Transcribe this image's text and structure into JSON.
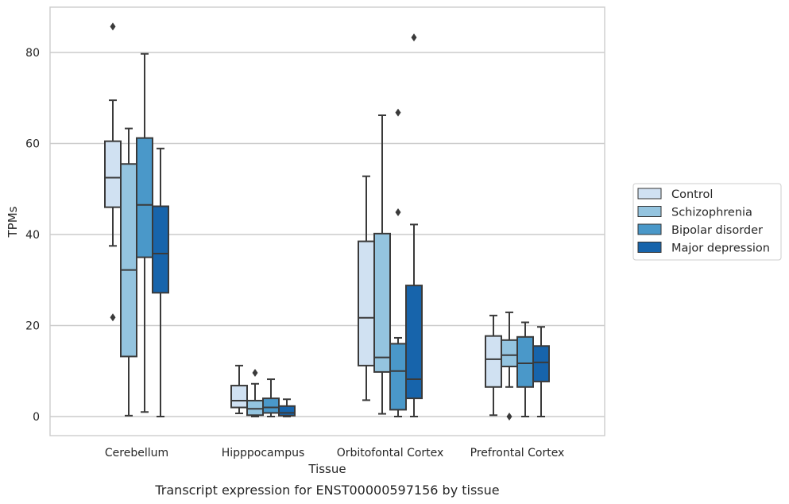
{
  "chart_data": {
    "type": "box",
    "title": "",
    "caption": "Transcript expression for ENST00000597156 by tissue",
    "xlabel": "Tissue",
    "ylabel": "TPMs",
    "ylim": [
      -4,
      90
    ],
    "yticks": [
      0,
      20,
      40,
      60,
      80
    ],
    "grid": "horizontal",
    "legend_position": "right",
    "categories": [
      "Cerebellum",
      "Hipppocampus",
      "Orbitofontal Cortex",
      "Prefrontal Cortex"
    ],
    "series": [
      {
        "name": "Control",
        "color": "#d0e1f2",
        "boxes": [
          {
            "whisker_low": 37.5,
            "q1": 46.0,
            "median": 52.5,
            "q3": 60.5,
            "whisker_high": 69.5,
            "outliers": [
              85.7,
              21.8
            ]
          },
          {
            "whisker_low": 0.7,
            "q1": 2.0,
            "median": 3.5,
            "q3": 6.8,
            "whisker_high": 11.2,
            "outliers": []
          },
          {
            "whisker_low": 3.6,
            "q1": 11.2,
            "median": 21.7,
            "q3": 38.5,
            "whisker_high": 52.8,
            "outliers": []
          },
          {
            "whisker_low": 0.3,
            "q1": 6.5,
            "median": 12.6,
            "q3": 17.7,
            "whisker_high": 22.2,
            "outliers": []
          }
        ]
      },
      {
        "name": "Schizophrenia",
        "color": "#94c4df",
        "boxes": [
          {
            "whisker_low": 0.2,
            "q1": 13.2,
            "median": 32.2,
            "q3": 55.5,
            "whisker_high": 63.3,
            "outliers": []
          },
          {
            "whisker_low": 0.0,
            "q1": 0.3,
            "median": 1.7,
            "q3": 3.5,
            "whisker_high": 7.2,
            "outliers": [
              9.6
            ]
          },
          {
            "whisker_low": 0.6,
            "q1": 9.8,
            "median": 13.0,
            "q3": 40.2,
            "whisker_high": 66.2,
            "outliers": []
          },
          {
            "whisker_low": 6.5,
            "q1": 11.0,
            "median": 13.5,
            "q3": 16.8,
            "whisker_high": 22.9,
            "outliers": [
              0.0
            ]
          }
        ]
      },
      {
        "name": "Bipolar disorder",
        "color": "#4a98c9",
        "boxes": [
          {
            "whisker_low": 1.0,
            "q1": 35.0,
            "median": 46.5,
            "q3": 61.2,
            "whisker_high": 79.7,
            "outliers": []
          },
          {
            "whisker_low": 0.0,
            "q1": 0.8,
            "median": 2.0,
            "q3": 4.0,
            "whisker_high": 8.2,
            "outliers": []
          },
          {
            "whisker_low": 0.0,
            "q1": 1.5,
            "median": 10.0,
            "q3": 16.0,
            "whisker_high": 17.3,
            "outliers": [
              66.8,
              44.9
            ]
          },
          {
            "whisker_low": 0.0,
            "q1": 6.5,
            "median": 11.7,
            "q3": 17.5,
            "whisker_high": 20.7,
            "outliers": []
          }
        ]
      },
      {
        "name": "Major depression",
        "color": "#1764ab",
        "boxes": [
          {
            "whisker_low": 0.0,
            "q1": 27.2,
            "median": 35.8,
            "q3": 46.2,
            "whisker_high": 58.9,
            "outliers": []
          },
          {
            "whisker_low": 0.0,
            "q1": 0.2,
            "median": 0.8,
            "q3": 2.3,
            "whisker_high": 3.8,
            "outliers": []
          },
          {
            "whisker_low": 0.0,
            "q1": 4.0,
            "median": 8.2,
            "q3": 28.8,
            "whisker_high": 42.2,
            "outliers": [
              83.3
            ]
          },
          {
            "whisker_low": 0.0,
            "q1": 7.7,
            "median": 11.9,
            "q3": 15.5,
            "whisker_high": 19.7,
            "outliers": []
          }
        ]
      }
    ]
  }
}
